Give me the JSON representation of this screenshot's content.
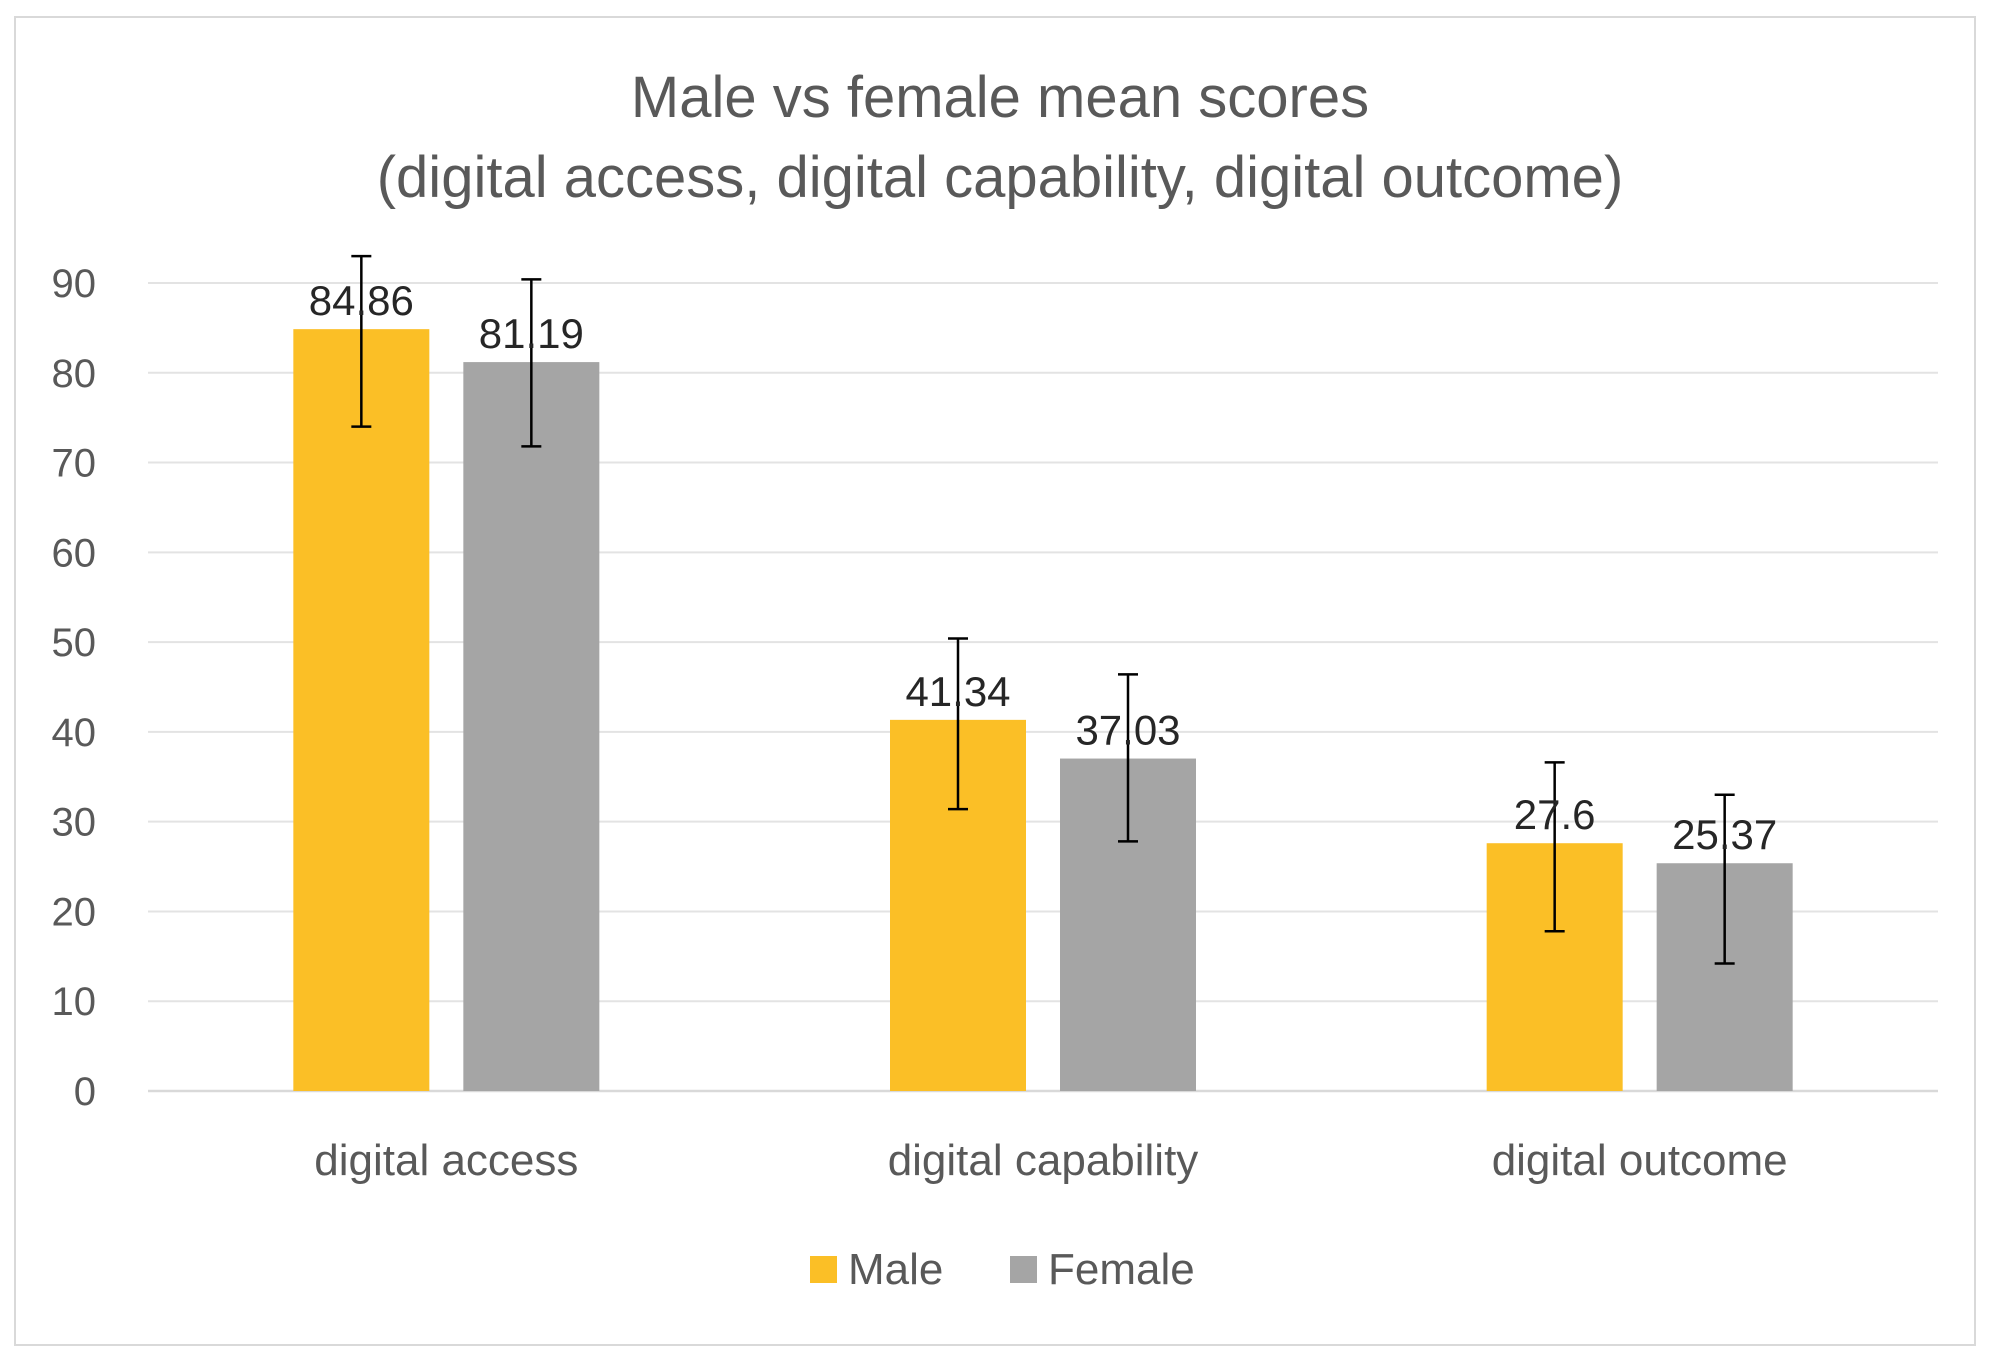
{
  "chart_data": {
    "type": "bar",
    "title_lines": [
      "Male vs female mean scores",
      "(digital access, digital capability, digital outcome)"
    ],
    "categories": [
      "digital access",
      "digital capability",
      "digital outcome"
    ],
    "series": [
      {
        "name": "Male",
        "color": "#FBBF26",
        "values": [
          84.86,
          41.34,
          27.6
        ],
        "labels": [
          "84.86",
          "41.34",
          "27.6"
        ],
        "err_low": [
          74.0,
          31.4,
          17.8
        ],
        "err_high": [
          93.0,
          50.4,
          36.6
        ]
      },
      {
        "name": "Female",
        "color": "#A5A5A5",
        "values": [
          81.19,
          37.03,
          25.37
        ],
        "labels": [
          "81.19",
          "37.03",
          "25.37"
        ],
        "err_low": [
          71.8,
          27.8,
          14.2
        ],
        "err_high": [
          90.4,
          46.4,
          33.0
        ]
      }
    ],
    "ylim": [
      0,
      90
    ],
    "yticks": [
      0,
      10,
      20,
      30,
      40,
      50,
      60,
      70,
      80,
      90
    ],
    "ytick_labels": [
      "0",
      "10",
      "20",
      "30",
      "40",
      "50",
      "60",
      "70",
      "80",
      "90"
    ],
    "grid": true,
    "legend_position": "bottom-center",
    "xlabel": "",
    "ylabel": ""
  }
}
